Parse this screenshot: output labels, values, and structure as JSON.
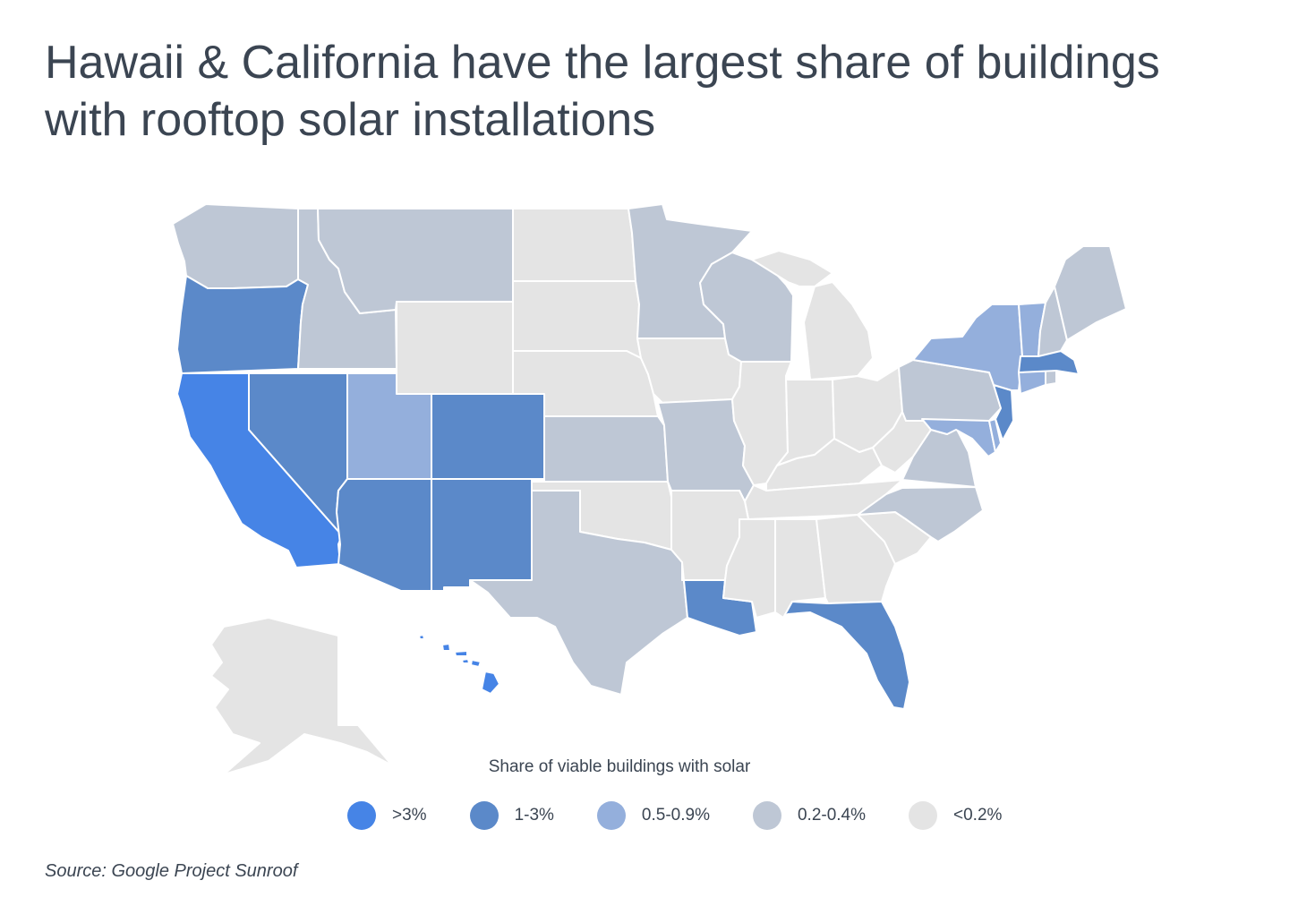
{
  "title": "Hawaii & California have the largest share of buildings with rooftop solar installations",
  "legend": {
    "title": "Share of viable buildings with solar",
    "items": [
      {
        "key": "t1",
        "label": ">3%",
        "color": "#4684e6"
      },
      {
        "key": "t2",
        "label": "1-3%",
        "color": "#5b89c9"
      },
      {
        "key": "t3",
        "label": "0.5-0.9%",
        "color": "#94afdc"
      },
      {
        "key": "t4",
        "label": "0.2-0.4%",
        "color": "#bec7d5"
      },
      {
        "key": "t5",
        "label": "<0.2%",
        "color": "#e4e4e4"
      }
    ]
  },
  "state_tiers": {
    "hawaii": "t1",
    "california": "t1",
    "oregon": "t2",
    "nevada": "t2",
    "arizona": "t2",
    "colorado": "t2",
    "new-mexico": "t2",
    "louisiana": "t2",
    "florida": "t2",
    "massachusetts": "t2",
    "new-jersey": "t2",
    "utah": "t3",
    "new-york": "t3",
    "vermont": "t3",
    "connecticut": "t3",
    "maryland": "t3",
    "delaware": "t3",
    "washington": "t4",
    "idaho": "t4",
    "montana": "t4",
    "minnesota": "t4",
    "wisconsin": "t4",
    "kansas": "t4",
    "missouri": "t4",
    "texas": "t4",
    "pennsylvania": "t4",
    "virginia": "t4",
    "north-carolina": "t4",
    "new-hampshire": "t4",
    "maine": "t4",
    "rhode-island": "t4",
    "wyoming": "t5",
    "north-dakota": "t5",
    "south-dakota": "t5",
    "nebraska": "t5",
    "iowa": "t5",
    "illinois": "t5",
    "indiana": "t5",
    "ohio": "t5",
    "michigan": "t5",
    "kentucky": "t5",
    "tennessee": "t5",
    "west-virginia": "t5",
    "oklahoma": "t5",
    "arkansas": "t5",
    "mississippi": "t5",
    "alabama": "t5",
    "georgia": "t5",
    "south-carolina": "t5",
    "alaska": "t5"
  },
  "source": "Source: Google Project Sunroof"
}
